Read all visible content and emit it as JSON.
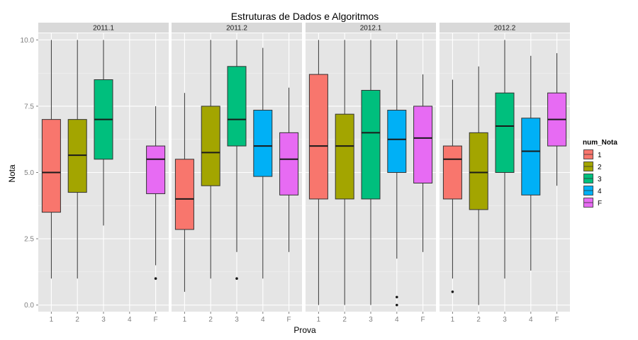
{
  "chart_data": {
    "type": "boxplot",
    "title": "Estruturas de Dados e Algoritmos",
    "xlabel": "Prova",
    "ylabel": "Nota",
    "ylim": [
      -0.25,
      10.25
    ],
    "yticks": [
      0.0,
      2.5,
      5.0,
      7.5,
      10.0
    ],
    "ytick_labels": [
      "0.0",
      "2.5",
      "5.0",
      "7.5",
      "10.0"
    ],
    "categories": [
      "1",
      "2",
      "3",
      "4",
      "F"
    ],
    "grid": true,
    "legend": {
      "title": "num_Nota",
      "position": "right",
      "entries": [
        {
          "label": "1",
          "color": "#F8766D"
        },
        {
          "label": "2",
          "color": "#A3A500"
        },
        {
          "label": "3",
          "color": "#00BF7D"
        },
        {
          "label": "4",
          "color": "#00B0F6"
        },
        {
          "label": "F",
          "color": "#E76BF3"
        }
      ]
    },
    "panels": [
      {
        "label": "2011.1",
        "boxes": [
          {
            "x": "1",
            "min": 1.0,
            "q1": 3.5,
            "median": 5.0,
            "q3": 7.0,
            "max": 10.0,
            "outliers": []
          },
          {
            "x": "2",
            "min": 1.0,
            "q1": 4.25,
            "median": 5.65,
            "q3": 7.0,
            "max": 10.0,
            "outliers": []
          },
          {
            "x": "3",
            "min": 3.0,
            "q1": 5.5,
            "median": 7.0,
            "q3": 8.5,
            "max": 10.0,
            "outliers": []
          },
          {
            "x": "F",
            "min": 1.5,
            "q1": 4.2,
            "median": 5.5,
            "q3": 6.0,
            "max": 7.5,
            "outliers": [
              1.0
            ]
          }
        ]
      },
      {
        "label": "2011.2",
        "boxes": [
          {
            "x": "1",
            "min": 0.5,
            "q1": 2.85,
            "median": 4.0,
            "q3": 5.5,
            "max": 8.0,
            "outliers": []
          },
          {
            "x": "2",
            "min": 1.0,
            "q1": 4.5,
            "median": 5.75,
            "q3": 7.5,
            "max": 10.0,
            "outliers": []
          },
          {
            "x": "3",
            "min": 2.0,
            "q1": 6.0,
            "median": 7.0,
            "q3": 9.0,
            "max": 10.0,
            "outliers": [
              1.0
            ]
          },
          {
            "x": "4",
            "min": 1.0,
            "q1": 4.85,
            "median": 6.0,
            "q3": 7.35,
            "max": 9.7,
            "outliers": []
          },
          {
            "x": "F",
            "min": 2.0,
            "q1": 4.15,
            "median": 5.5,
            "q3": 6.5,
            "max": 8.2,
            "outliers": []
          }
        ]
      },
      {
        "label": "2012.1",
        "boxes": [
          {
            "x": "1",
            "min": 0.0,
            "q1": 4.0,
            "median": 6.0,
            "q3": 8.7,
            "max": 10.0,
            "outliers": []
          },
          {
            "x": "2",
            "min": 0.0,
            "q1": 4.0,
            "median": 6.0,
            "q3": 7.2,
            "max": 10.0,
            "outliers": []
          },
          {
            "x": "3",
            "min": 0.0,
            "q1": 4.0,
            "median": 6.5,
            "q3": 8.1,
            "max": 10.0,
            "outliers": []
          },
          {
            "x": "4",
            "min": 1.75,
            "q1": 5.0,
            "median": 6.25,
            "q3": 7.35,
            "max": 10.0,
            "outliers": [
              0.3,
              0.0
            ]
          },
          {
            "x": "F",
            "min": 2.0,
            "q1": 4.6,
            "median": 6.3,
            "q3": 7.5,
            "max": 8.7,
            "outliers": []
          }
        ]
      },
      {
        "label": "2012.2",
        "boxes": [
          {
            "x": "1",
            "min": 1.0,
            "q1": 4.0,
            "median": 5.5,
            "q3": 6.0,
            "max": 8.5,
            "outliers": [
              0.5
            ]
          },
          {
            "x": "2",
            "min": 0.0,
            "q1": 3.6,
            "median": 5.0,
            "q3": 6.5,
            "max": 9.0,
            "outliers": []
          },
          {
            "x": "3",
            "min": 1.0,
            "q1": 5.0,
            "median": 6.75,
            "q3": 8.0,
            "max": 10.0,
            "outliers": []
          },
          {
            "x": "4",
            "min": 1.3,
            "q1": 4.15,
            "median": 5.8,
            "q3": 7.05,
            "max": 9.4,
            "outliers": []
          },
          {
            "x": "F",
            "min": 4.5,
            "q1": 6.0,
            "median": 7.0,
            "q3": 8.0,
            "max": 9.5,
            "outliers": []
          }
        ]
      }
    ]
  }
}
